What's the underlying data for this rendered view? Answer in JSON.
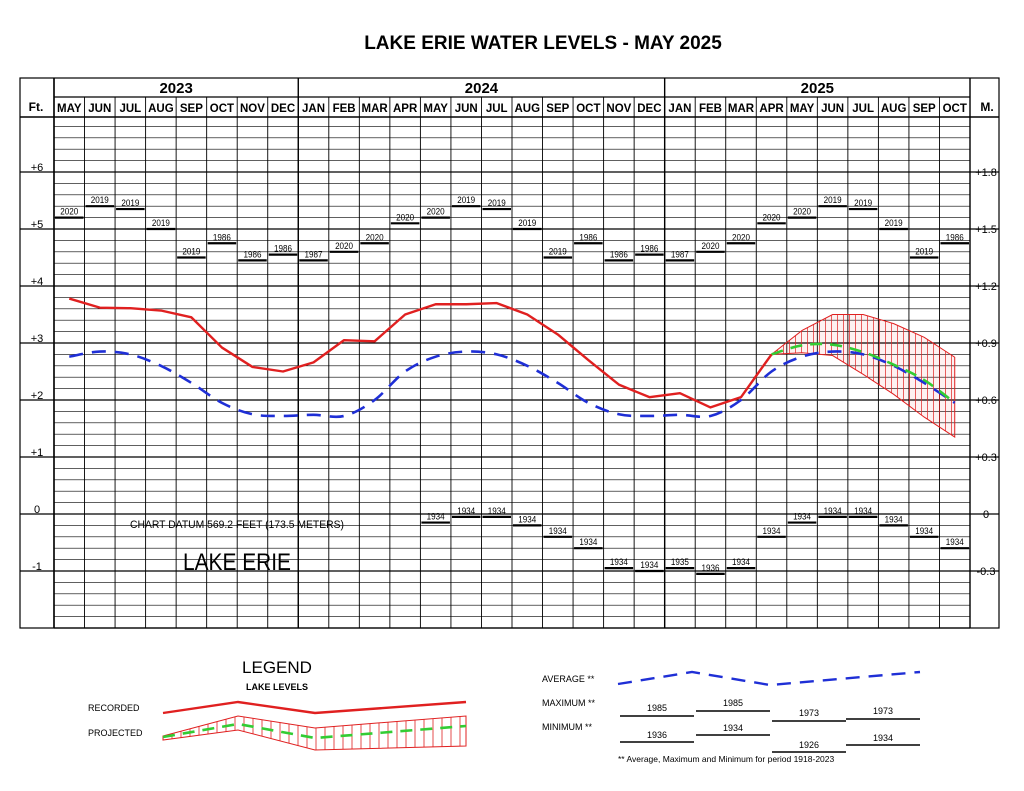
{
  "chart_data": {
    "type": "line",
    "title": "LAKE ERIE WATER LEVELS - MAY 2025",
    "left_unit": "Ft.",
    "right_unit": "M.",
    "years": [
      {
        "label": "2023",
        "start": 0,
        "count": 8
      },
      {
        "label": "2024",
        "start": 8,
        "count": 12
      },
      {
        "label": "2025",
        "start": 20,
        "count": 10
      }
    ],
    "months": [
      "MAY",
      "JUN",
      "JUL",
      "AUG",
      "SEP",
      "OCT",
      "NOV",
      "DEC",
      "JAN",
      "FEB",
      "MAR",
      "APR",
      "MAY",
      "JUN",
      "JUL",
      "AUG",
      "SEP",
      "OCT",
      "NOV",
      "DEC",
      "JAN",
      "FEB",
      "MAR",
      "APR",
      "MAY",
      "JUN",
      "JUL",
      "AUG",
      "SEP",
      "OCT"
    ],
    "ylim": [
      -2,
      7.5
    ],
    "left_ticks": [
      {
        "v": 6,
        "label": "+6"
      },
      {
        "v": 5,
        "label": "+5"
      },
      {
        "v": 4,
        "label": "+4"
      },
      {
        "v": 3,
        "label": "+3"
      },
      {
        "v": 2,
        "label": "+2"
      },
      {
        "v": 1,
        "label": "+1"
      },
      {
        "v": 0,
        "label": "0"
      },
      {
        "v": -1,
        "label": "-1"
      }
    ],
    "right_ticks": [
      {
        "v": 6,
        "label": "+1.8"
      },
      {
        "v": 5,
        "label": "+1.5"
      },
      {
        "v": 4,
        "label": "+1.2"
      },
      {
        "v": 3,
        "label": "+0.9"
      },
      {
        "v": 2,
        "label": "+0.6"
      },
      {
        "v": 1,
        "label": "+0.3"
      },
      {
        "v": 0,
        "label": "0"
      },
      {
        "v": -1,
        "label": "-0.3"
      }
    ],
    "annotations": {
      "datum": "CHART DATUM  569.2 FEET (173.5 METERS)",
      "lake": "LAKE ERIE"
    },
    "series": [
      {
        "name": "RECORDED",
        "color": "#e02020",
        "style": "solid",
        "values": [
          3.78,
          3.62,
          3.61,
          3.57,
          3.45,
          2.92,
          2.58,
          2.5,
          2.66,
          3.05,
          3.03,
          3.5,
          3.68,
          3.68,
          3.7,
          3.5,
          3.15,
          2.7,
          2.27,
          2.05,
          2.12,
          1.87,
          2.05,
          2.8,
          null,
          null,
          null,
          null,
          null,
          null
        ]
      },
      {
        "name": "AVERAGE",
        "color": "#1f2fd6",
        "style": "dashed",
        "values": [
          2.76,
          2.85,
          2.8,
          2.6,
          2.3,
          1.95,
          1.75,
          1.72,
          1.74,
          1.72,
          2.0,
          2.5,
          2.76,
          2.85,
          2.8,
          2.6,
          2.3,
          1.95,
          1.75,
          1.72,
          1.74,
          1.72,
          2.0,
          2.5,
          2.76,
          2.85,
          2.8,
          2.6,
          2.3,
          1.95
        ]
      },
      {
        "name": "PROJECTED",
        "color": "#33cc33",
        "style": "dashed",
        "start": 23,
        "values": [
          2.8,
          2.96,
          2.97,
          2.84,
          2.62,
          2.35,
          1.95
        ],
        "upper": [
          2.8,
          3.22,
          3.5,
          3.5,
          3.34,
          3.1,
          2.75
        ],
        "lower": [
          2.8,
          2.83,
          2.78,
          2.45,
          2.1,
          1.7,
          1.35
        ]
      }
    ],
    "max_labels": [
      {
        "i": 0,
        "v": 5.2,
        "label": "2020"
      },
      {
        "i": 1,
        "v": 5.4,
        "label": "2019"
      },
      {
        "i": 2,
        "v": 5.35,
        "label": "2019"
      },
      {
        "i": 3,
        "v": 5.0,
        "label": "2019"
      },
      {
        "i": 4,
        "v": 4.5,
        "label": "2019"
      },
      {
        "i": 5,
        "v": 4.75,
        "label": "1986"
      },
      {
        "i": 6,
        "v": 4.45,
        "label": "1986"
      },
      {
        "i": 7,
        "v": 4.55,
        "label": "1986"
      },
      {
        "i": 8,
        "v": 4.45,
        "label": "1987"
      },
      {
        "i": 9,
        "v": 4.6,
        "label": "2020"
      },
      {
        "i": 10,
        "v": 4.75,
        "label": "2020"
      },
      {
        "i": 11,
        "v": 5.1,
        "label": "2020"
      },
      {
        "i": 12,
        "v": 5.2,
        "label": "2020"
      },
      {
        "i": 13,
        "v": 5.4,
        "label": "2019"
      },
      {
        "i": 14,
        "v": 5.35,
        "label": "2019"
      },
      {
        "i": 15,
        "v": 5.0,
        "label": "2019"
      },
      {
        "i": 16,
        "v": 4.5,
        "label": "2019"
      },
      {
        "i": 17,
        "v": 4.75,
        "label": "1986"
      },
      {
        "i": 18,
        "v": 4.45,
        "label": "1986"
      },
      {
        "i": 19,
        "v": 4.55,
        "label": "1986"
      },
      {
        "i": 20,
        "v": 4.45,
        "label": "1987"
      },
      {
        "i": 21,
        "v": 4.6,
        "label": "2020"
      },
      {
        "i": 22,
        "v": 4.75,
        "label": "2020"
      },
      {
        "i": 23,
        "v": 5.1,
        "label": "2020"
      },
      {
        "i": 24,
        "v": 5.2,
        "label": "2020"
      },
      {
        "i": 25,
        "v": 5.4,
        "label": "2019"
      },
      {
        "i": 26,
        "v": 5.35,
        "label": "2019"
      },
      {
        "i": 27,
        "v": 5.0,
        "label": "2019"
      },
      {
        "i": 28,
        "v": 4.5,
        "label": "2019"
      },
      {
        "i": 29,
        "v": 4.75,
        "label": "1986"
      }
    ],
    "min_labels": [
      {
        "i": 12,
        "v": -0.15,
        "label": "1934"
      },
      {
        "i": 13,
        "v": -0.05,
        "label": "1934"
      },
      {
        "i": 14,
        "v": -0.05,
        "label": "1934"
      },
      {
        "i": 15,
        "v": -0.2,
        "label": "1934"
      },
      {
        "i": 16,
        "v": -0.4,
        "label": "1934"
      },
      {
        "i": 17,
        "v": -0.6,
        "label": "1934"
      },
      {
        "i": 18,
        "v": -0.95,
        "label": "1934"
      },
      {
        "i": 19,
        "v": -1.0,
        "label": "1934"
      },
      {
        "i": 20,
        "v": -0.95,
        "label": "1935"
      },
      {
        "i": 21,
        "v": -1.05,
        "label": "1936"
      },
      {
        "i": 22,
        "v": -0.95,
        "label": "1934"
      },
      {
        "i": 23,
        "v": -0.4,
        "label": "1934"
      },
      {
        "i": 24,
        "v": -0.15,
        "label": "1934"
      },
      {
        "i": 25,
        "v": -0.05,
        "label": "1934"
      },
      {
        "i": 26,
        "v": -0.05,
        "label": "1934"
      },
      {
        "i": 27,
        "v": -0.2,
        "label": "1934"
      },
      {
        "i": 28,
        "v": -0.4,
        "label": "1934"
      },
      {
        "i": 29,
        "v": -0.6,
        "label": "1934"
      }
    ],
    "legend": {
      "title": "LEGEND",
      "subtitle": "LAKE LEVELS",
      "recorded": "RECORDED",
      "projected": "PROJECTED",
      "average": "AVERAGE **",
      "maximum": "MAXIMUM **",
      "minimum": "MINIMUM **",
      "max_example": [
        "1985",
        "1985",
        "1973",
        "1973"
      ],
      "min_example": [
        "1936",
        "1934",
        "1926",
        "1934"
      ],
      "footnote": "** Average, Maximum and Minimum for period 1918-2023"
    }
  }
}
